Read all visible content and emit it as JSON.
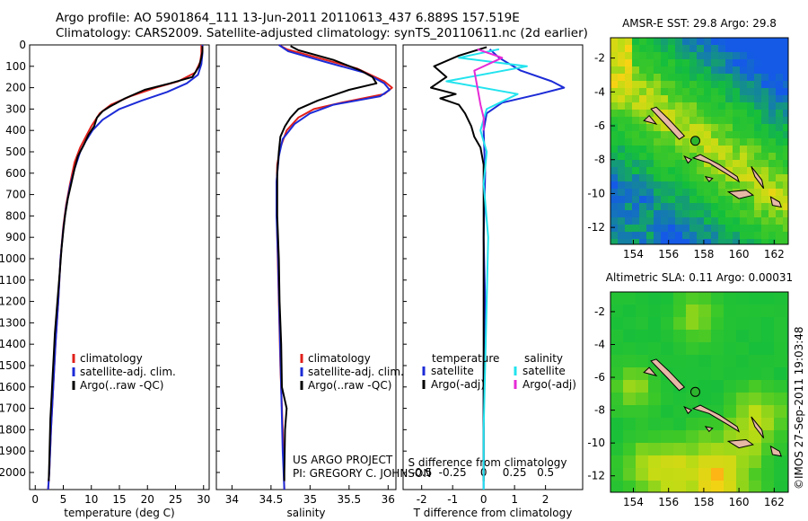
{
  "header": {
    "line1": "Argo profile: AO 5901864_111 13-Jun-2011 20110613_437 6.889S 157.519E",
    "line2": "Climatology: CARS2009. Satellite-adjusted climatology: synTS_20110611.nc (2d earlier)"
  },
  "credit": {
    "line1": "US ARGO PROJECT",
    "line2": "PI: GREGORY C. JOHNSON"
  },
  "timestamp": "©IMOS 27-Sep-2011 19:03:48",
  "colors": {
    "climatology": "#e0201b",
    "satellite": "#1c2bd6",
    "argo": "#000000",
    "sal_satellite": "#22e3ee",
    "sal_argo": "#e62ad6"
  },
  "chart_data": [
    {
      "id": "temperature",
      "type": "line",
      "xlabel": "temperature (deg C)",
      "ylabel": "",
      "xlim": [
        -1,
        31
      ],
      "ylim": [
        2080,
        0
      ],
      "xticks": [
        0,
        5,
        10,
        15,
        20,
        25,
        30
      ],
      "yticks": [
        0,
        100,
        200,
        300,
        400,
        500,
        600,
        700,
        800,
        900,
        1000,
        1100,
        1200,
        1300,
        1400,
        1500,
        1600,
        1700,
        1800,
        1900,
        2000
      ],
      "legend": [
        "climatology",
        "satellite-adj. clim.",
        "Argo(..raw -QC)"
      ],
      "series": [
        {
          "name": "climatology",
          "color": "#e0201b",
          "points": [
            [
              29.6,
              0
            ],
            [
              29.6,
              40
            ],
            [
              29.4,
              80
            ],
            [
              28.5,
              130
            ],
            [
              25.5,
              170
            ],
            [
              21.5,
              200
            ],
            [
              17,
              240
            ],
            [
              13.5,
              280
            ],
            [
              11.5,
              320
            ],
            [
              10,
              380
            ],
            [
              9,
              430
            ],
            [
              8,
              480
            ],
            [
              7,
              550
            ],
            [
              6.2,
              650
            ],
            [
              5.5,
              750
            ],
            [
              5,
              850
            ],
            [
              4.5,
              1000
            ],
            [
              4.1,
              1200
            ],
            [
              3.6,
              1400
            ],
            [
              3.2,
              1600
            ],
            [
              2.8,
              1800
            ],
            [
              2.5,
              2000
            ],
            [
              2.3,
              2080
            ]
          ]
        },
        {
          "name": "satellite-adj. clim.",
          "color": "#1c2bd6",
          "points": [
            [
              29.8,
              0
            ],
            [
              29.8,
              40
            ],
            [
              29.6,
              90
            ],
            [
              29,
              140
            ],
            [
              27,
              180
            ],
            [
              23.5,
              220
            ],
            [
              19,
              260
            ],
            [
              15,
              300
            ],
            [
              12,
              350
            ],
            [
              10.2,
              400
            ],
            [
              9,
              450
            ],
            [
              8,
              500
            ],
            [
              7,
              580
            ],
            [
              6.2,
              660
            ],
            [
              5.5,
              760
            ],
            [
              5,
              860
            ],
            [
              4.5,
              1000
            ],
            [
              4.1,
              1200
            ],
            [
              3.6,
              1400
            ],
            [
              3.2,
              1600
            ],
            [
              2.8,
              1800
            ],
            [
              2.5,
              2000
            ],
            [
              2.3,
              2080
            ]
          ]
        },
        {
          "name": "Argo(..raw -QC)",
          "color": "#000000",
          "points": [
            [
              29.8,
              5
            ],
            [
              29.8,
              30
            ],
            [
              29.6,
              60
            ],
            [
              29.2,
              100
            ],
            [
              28,
              150
            ],
            [
              24,
              180
            ],
            [
              19.5,
              210
            ],
            [
              16,
              250
            ],
            [
              13.2,
              290
            ],
            [
              12,
              310
            ],
            [
              11,
              340
            ],
            [
              10.5,
              380
            ],
            [
              9.5,
              420
            ],
            [
              8.6,
              470
            ],
            [
              7.6,
              520
            ],
            [
              7,
              580
            ],
            [
              6.4,
              650
            ],
            [
              5.8,
              720
            ],
            [
              5.3,
              800
            ],
            [
              5,
              870
            ],
            [
              4.7,
              950
            ],
            [
              4.4,
              1050
            ],
            [
              4.1,
              1150
            ],
            [
              3.8,
              1250
            ],
            [
              3.5,
              1350
            ],
            [
              3.3,
              1450
            ],
            [
              3.1,
              1550
            ],
            [
              2.9,
              1650
            ],
            [
              2.7,
              1750
            ],
            [
              2.6,
              1850
            ],
            [
              2.5,
              1950
            ],
            [
              2.4,
              2040
            ]
          ]
        }
      ]
    },
    {
      "id": "salinity",
      "type": "line",
      "xlabel": "salinity",
      "xlim": [
        33.8,
        36.1
      ],
      "ylim": [
        2080,
        0
      ],
      "xticks": [
        34,
        34.5,
        35,
        35.5,
        36
      ],
      "xtick_labels": [
        "34",
        "34.5",
        "35",
        "35.5",
        "36"
      ],
      "legend": [
        "climatology",
        "satellite-adj. clim.",
        "Argo(..raw -QC)"
      ],
      "series": [
        {
          "name": "climatology",
          "color": "#e0201b",
          "points": [
            [
              34.6,
              0
            ],
            [
              34.7,
              20
            ],
            [
              35.1,
              60
            ],
            [
              35.6,
              110
            ],
            [
              35.95,
              170
            ],
            [
              36.05,
              200
            ],
            [
              35.95,
              230
            ],
            [
              35.4,
              270
            ],
            [
              35.05,
              300
            ],
            [
              34.85,
              340
            ],
            [
              34.7,
              400
            ],
            [
              34.62,
              480
            ],
            [
              34.58,
              560
            ],
            [
              34.57,
              700
            ],
            [
              34.58,
              900
            ],
            [
              34.6,
              1200
            ],
            [
              34.62,
              1500
            ],
            [
              34.65,
              1800
            ],
            [
              34.67,
              2080
            ]
          ]
        },
        {
          "name": "satellite-adj. clim.",
          "color": "#1c2bd6",
          "points": [
            [
              34.6,
              0
            ],
            [
              34.72,
              30
            ],
            [
              35.2,
              80
            ],
            [
              35.7,
              130
            ],
            [
              35.95,
              180
            ],
            [
              36.02,
              210
            ],
            [
              35.9,
              240
            ],
            [
              35.3,
              280
            ],
            [
              35.0,
              320
            ],
            [
              34.8,
              370
            ],
            [
              34.65,
              440
            ],
            [
              34.6,
              520
            ],
            [
              34.57,
              640
            ],
            [
              34.57,
              800
            ],
            [
              34.59,
              1000
            ],
            [
              34.61,
              1300
            ],
            [
              34.63,
              1600
            ],
            [
              34.65,
              1900
            ],
            [
              34.67,
              2080
            ]
          ]
        },
        {
          "name": "Argo(..raw -QC)",
          "color": "#000000",
          "points": [
            [
              34.75,
              5
            ],
            [
              34.85,
              25
            ],
            [
              35.3,
              70
            ],
            [
              35.65,
              120
            ],
            [
              35.8,
              150
            ],
            [
              35.85,
              180
            ],
            [
              35.5,
              210
            ],
            [
              35.1,
              260
            ],
            [
              34.85,
              300
            ],
            [
              34.75,
              340
            ],
            [
              34.68,
              380
            ],
            [
              34.62,
              430
            ],
            [
              34.6,
              500
            ],
            [
              34.58,
              600
            ],
            [
              34.58,
              800
            ],
            [
              34.6,
              1000
            ],
            [
              34.61,
              1200
            ],
            [
              34.63,
              1400
            ],
            [
              34.64,
              1600
            ],
            [
              34.7,
              1700
            ],
            [
              34.68,
              1800
            ],
            [
              34.67,
              2000
            ],
            [
              34.67,
              2040
            ]
          ]
        }
      ]
    },
    {
      "id": "difference",
      "type": "line",
      "xlabel": "T difference from climatology",
      "xlabel_top": "S difference from climatology",
      "xlim": [
        -2.6,
        3.2
      ],
      "ylim": [
        2080,
        0
      ],
      "xticks": [
        -2,
        -1,
        0,
        1,
        2
      ],
      "xtick_labels": [
        "-2",
        "-1",
        "0",
        "1",
        "2"
      ],
      "s_ticks": [
        -0.5,
        -0.25,
        0,
        0.25,
        0.5
      ],
      "s_tick_labels": [
        "-0.5",
        "-0.25",
        "0",
        "0.25",
        "0.5"
      ],
      "s_scale": 4,
      "legend_headers": [
        "temperature",
        "salinity"
      ],
      "legend_left": [
        "satellite",
        "Argo(-adj)"
      ],
      "legend_right": [
        "satellite",
        "Argo(-adj)"
      ],
      "series": [
        {
          "name": "T satellite",
          "color": "#1c2bd6",
          "points": [
            [
              0.2,
              20
            ],
            [
              0.5,
              60
            ],
            [
              1.2,
              120
            ],
            [
              2.2,
              170
            ],
            [
              2.6,
              200
            ],
            [
              1.8,
              230
            ],
            [
              0.6,
              270
            ],
            [
              0.1,
              320
            ],
            [
              0,
              400
            ],
            [
              0.05,
              600
            ],
            [
              0,
              900
            ],
            [
              0.05,
              1200
            ],
            [
              0,
              1500
            ],
            [
              0,
              1800
            ],
            [
              0,
              2080
            ]
          ]
        },
        {
          "name": "T Argo(-adj)",
          "color": "#000000",
          "points": [
            [
              0.1,
              10
            ],
            [
              -0.8,
              50
            ],
            [
              -1.6,
              100
            ],
            [
              -1.2,
              150
            ],
            [
              -1.7,
              200
            ],
            [
              -0.9,
              230
            ],
            [
              -1.4,
              250
            ],
            [
              -0.8,
              280
            ],
            [
              -0.6,
              320
            ],
            [
              -0.4,
              380
            ],
            [
              -0.3,
              430
            ],
            [
              -0.1,
              480
            ],
            [
              0,
              560
            ],
            [
              0,
              700
            ],
            [
              0,
              900
            ],
            [
              0,
              1000
            ],
            [
              0,
              1200
            ],
            [
              0,
              1400
            ],
            [
              0,
              1700
            ],
            [
              0,
              1950
            ],
            [
              0,
              2040
            ]
          ]
        },
        {
          "name": "S satellite",
          "color": "#22e3ee",
          "points": [
            [
              0.5,
              20
            ],
            [
              -0.8,
              60
            ],
            [
              1.4,
              100
            ],
            [
              -1.2,
              170
            ],
            [
              1.1,
              230
            ],
            [
              0.1,
              300
            ],
            [
              -0.1,
              400
            ],
            [
              0.1,
              500
            ],
            [
              0,
              650
            ],
            [
              0.15,
              900
            ],
            [
              0.1,
              1200
            ],
            [
              0.05,
              1500
            ],
            [
              0,
              1800
            ],
            [
              0,
              2080
            ]
          ]
        },
        {
          "name": "S Argo(-adj)",
          "color": "#e62ad6",
          "points": [
            [
              -0.2,
              20
            ],
            [
              0.6,
              60
            ],
            [
              -0.3,
              120
            ],
            [
              -0.2,
              200
            ],
            [
              -0.1,
              280
            ],
            [
              0,
              340
            ],
            [
              0,
              400
            ]
          ]
        }
      ]
    }
  ],
  "maps": [
    {
      "title": "AMSR-E SST: 29.8 Argo: 29.8",
      "yticks": [
        -2,
        -4,
        -6,
        -8,
        -10,
        -12
      ],
      "ytick_labels": [
        "-2",
        "-4",
        "-6",
        "-8",
        "-10",
        "-12"
      ],
      "xticks": [
        154,
        156,
        158,
        160,
        162
      ],
      "xtick_labels": [
        "154",
        "156",
        "158",
        "160",
        "162"
      ],
      "lon_range": [
        152.7,
        162.8
      ],
      "lat_range": [
        -13,
        -0.8
      ],
      "argo_position": [
        157.519,
        -6.889
      ]
    },
    {
      "title": "Altimetric SLA: 0.11 Argo: 0.00031",
      "yticks": [
        -2,
        -4,
        -6,
        -8,
        -10,
        -12
      ],
      "ytick_labels": [
        "-2",
        "-4",
        "-6",
        "-8",
        "-10",
        "-12"
      ],
      "xticks": [
        154,
        156,
        158,
        160,
        162
      ],
      "xtick_labels": [
        "154",
        "156",
        "158",
        "160",
        "162"
      ],
      "lon_range": [
        152.7,
        162.8
      ],
      "lat_range": [
        -13,
        -0.8
      ],
      "argo_position": [
        157.519,
        -6.889
      ]
    }
  ]
}
